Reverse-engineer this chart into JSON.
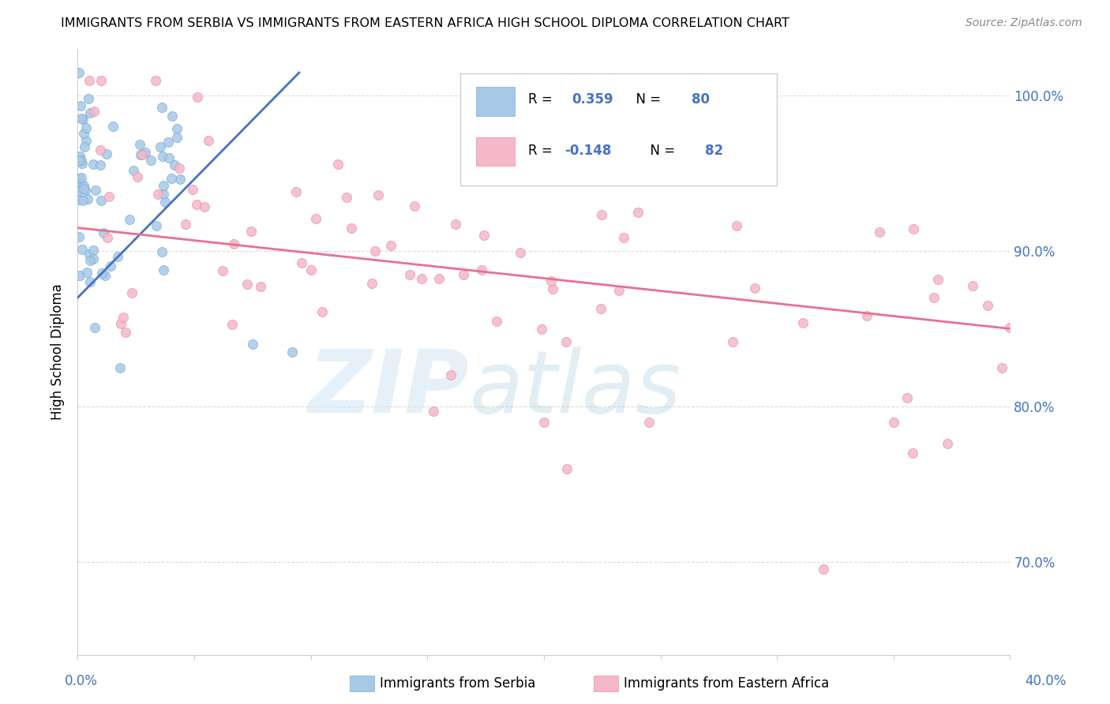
{
  "title": "IMMIGRANTS FROM SERBIA VS IMMIGRANTS FROM EASTERN AFRICA HIGH SCHOOL DIPLOMA CORRELATION CHART",
  "source": "Source: ZipAtlas.com",
  "ylabel": "High School Diploma",
  "xmin": 0.0,
  "xmax": 40.0,
  "ymin": 64.0,
  "ymax": 103.0,
  "yticks": [
    70,
    80,
    90,
    100
  ],
  "ytick_labels": [
    "70.0%",
    "80.0%",
    "90.0%",
    "100.0%"
  ],
  "blue_R": "0.359",
  "blue_N": "80",
  "pink_R": "-0.148",
  "pink_N": "82",
  "blue_color": "#a8c8e8",
  "blue_edge_color": "#7aadd4",
  "pink_color": "#f4b8c8",
  "pink_edge_color": "#e890a8",
  "blue_line_color": "#4472c4",
  "pink_line_color": "#e87090",
  "blue_line_x": [
    0.0,
    9.5
  ],
  "blue_line_y": [
    87.0,
    101.5
  ],
  "pink_line_x": [
    0.0,
    40.0
  ],
  "pink_line_y": [
    91.5,
    85.0
  ],
  "legend_label_blue": "Immigrants from Serbia",
  "legend_label_pink": "Immigrants from Eastern Africa",
  "grid_color": "#d8d8d8",
  "axis_color": "#cccccc",
  "right_label_color": "#4472c4",
  "title_fontsize": 11.5,
  "source_fontsize": 10,
  "tick_label_fontsize": 12,
  "legend_fontsize": 12,
  "ylabel_fontsize": 12
}
